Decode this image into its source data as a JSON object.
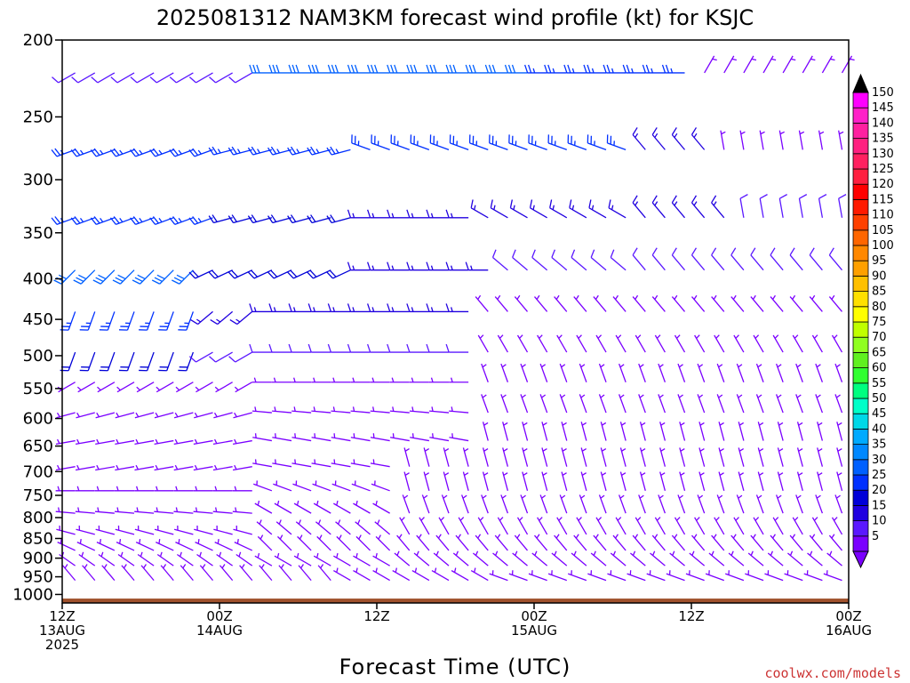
{
  "chart_data": {
    "type": "wind-barb profile",
    "title": "2025081312 NAM3KM forecast wind profile (kt) for KSJC",
    "xlabel": "Forecast Time (UTC)",
    "credit": "coolwx.com/models",
    "y_axis": {
      "scale": "pressure (log)",
      "range": [
        1025,
        200
      ],
      "ticks": [
        "200",
        "250",
        "300",
        "350",
        "400",
        "450",
        "500",
        "550",
        "600",
        "650",
        "700",
        "750",
        "800",
        "850",
        "900",
        "950",
        "1000"
      ]
    },
    "x_axis": {
      "range_hours": [
        0,
        60
      ],
      "ticks": [
        {
          "hour": 0,
          "lines": [
            "12Z",
            "13AUG",
            "2025"
          ]
        },
        {
          "hour": 12,
          "lines": [
            "00Z",
            "14AUG"
          ]
        },
        {
          "hour": 24,
          "lines": [
            "12Z"
          ]
        },
        {
          "hour": 36,
          "lines": [
            "00Z",
            "15AUG"
          ]
        },
        {
          "hour": 48,
          "lines": [
            "12Z"
          ]
        },
        {
          "hour": 60,
          "lines": [
            "00Z",
            "16AUG"
          ]
        }
      ]
    },
    "colorbar": {
      "levels": [
        "5",
        "10",
        "15",
        "20",
        "25",
        "30",
        "35",
        "40",
        "45",
        "50",
        "55",
        "60",
        "65",
        "70",
        "75",
        "80",
        "85",
        "90",
        "95",
        "100",
        "105",
        "110",
        "115",
        "120",
        "125",
        "130",
        "135",
        "140",
        "145",
        "150"
      ],
      "colors": [
        "#7a00ff",
        "#5a18ff",
        "#2000e0",
        "#0000d8",
        "#0030ff",
        "#0060ff",
        "#0088ff",
        "#00aaff",
        "#00d8e8",
        "#00ffc8",
        "#00ff80",
        "#30ff30",
        "#60f020",
        "#90ff20",
        "#c0ff00",
        "#ffff00",
        "#ffe000",
        "#ffc000",
        "#ffa000",
        "#ff8800",
        "#ff6600",
        "#ff4000",
        "#ff1a00",
        "#ff0000",
        "#ff2040",
        "#ff2060",
        "#ff2080",
        "#ff20a0",
        "#ff20c8",
        "#ff00ff"
      ]
    },
    "ground_pressure": 1012,
    "levels_hpa": [
      220,
      275,
      335,
      390,
      440,
      495,
      540,
      590,
      640,
      690,
      740,
      790,
      840,
      880,
      920,
      960
    ],
    "time_step_hours": 1.5,
    "note": "each row lists [speed_kt, direction_deg] pairs (direction is where wind blows FROM) at each 1.5 h step",
    "rows": [
      {
        "p": 220,
        "seg": [
          {
            "n": 10,
            "spd": 12,
            "dir": 240
          },
          {
            "n": 14,
            "spd": 30,
            "dir": 270
          },
          {
            "n": 8,
            "spd": 25,
            "dir": 270
          },
          {
            "n": 9,
            "spd": 8,
            "dir": 30
          }
        ]
      },
      {
        "p": 275,
        "seg": [
          {
            "n": 8,
            "spd": 28,
            "dir": 250
          },
          {
            "n": 7,
            "spd": 25,
            "dir": 255
          },
          {
            "n": 14,
            "spd": 28,
            "dir": 290
          },
          {
            "n": 4,
            "spd": 15,
            "dir": 320
          },
          {
            "n": 8,
            "spd": 8,
            "dir": 350
          }
        ]
      },
      {
        "p": 335,
        "seg": [
          {
            "n": 8,
            "spd": 28,
            "dir": 250
          },
          {
            "n": 7,
            "spd": 22,
            "dir": 255
          },
          {
            "n": 6,
            "spd": 18,
            "dir": 270
          },
          {
            "n": 8,
            "spd": 15,
            "dir": 300
          },
          {
            "n": 5,
            "spd": 15,
            "dir": 320
          },
          {
            "n": 7,
            "spd": 10,
            "dir": 350
          }
        ]
      },
      {
        "p": 390,
        "seg": [
          {
            "n": 7,
            "spd": 30,
            "dir": 225
          },
          {
            "n": 8,
            "spd": 20,
            "dir": 245
          },
          {
            "n": 7,
            "spd": 15,
            "dir": 270
          },
          {
            "n": 7,
            "spd": 10,
            "dir": 310
          },
          {
            "n": 12,
            "spd": 10,
            "dir": 320
          }
        ]
      },
      {
        "p": 440,
        "seg": [
          {
            "n": 7,
            "spd": 25,
            "dir": 200
          },
          {
            "n": 3,
            "spd": 15,
            "dir": 230
          },
          {
            "n": 11,
            "spd": 15,
            "dir": 270
          },
          {
            "n": 20,
            "spd": 8,
            "dir": 320
          }
        ]
      },
      {
        "p": 495,
        "seg": [
          {
            "n": 7,
            "spd": 20,
            "dir": 200
          },
          {
            "n": 3,
            "spd": 10,
            "dir": 240
          },
          {
            "n": 11,
            "spd": 13,
            "dir": 270
          },
          {
            "n": 20,
            "spd": 6,
            "dir": 330
          }
        ]
      },
      {
        "p": 540,
        "seg": [
          {
            "n": 10,
            "spd": 8,
            "dir": 240
          },
          {
            "n": 11,
            "spd": 8,
            "dir": 270
          },
          {
            "n": 20,
            "spd": 6,
            "dir": 340
          }
        ]
      },
      {
        "p": 590,
        "seg": [
          {
            "n": 10,
            "spd": 8,
            "dir": 255
          },
          {
            "n": 11,
            "spd": 8,
            "dir": 275
          },
          {
            "n": 20,
            "spd": 6,
            "dir": 340
          }
        ]
      },
      {
        "p": 640,
        "seg": [
          {
            "n": 10,
            "spd": 8,
            "dir": 260
          },
          {
            "n": 11,
            "spd": 7,
            "dir": 280
          },
          {
            "n": 20,
            "spd": 6,
            "dir": 345
          }
        ]
      },
      {
        "p": 690,
        "seg": [
          {
            "n": 10,
            "spd": 7,
            "dir": 260
          },
          {
            "n": 7,
            "spd": 7,
            "dir": 280
          },
          {
            "n": 24,
            "spd": 6,
            "dir": 345
          }
        ]
      },
      {
        "p": 740,
        "seg": [
          {
            "n": 10,
            "spd": 6,
            "dir": 270
          },
          {
            "n": 7,
            "spd": 6,
            "dir": 290
          },
          {
            "n": 24,
            "spd": 6,
            "dir": 345
          }
        ]
      },
      {
        "p": 790,
        "seg": [
          {
            "n": 10,
            "spd": 6,
            "dir": 275
          },
          {
            "n": 7,
            "spd": 6,
            "dir": 300
          },
          {
            "n": 24,
            "spd": 6,
            "dir": 340
          }
        ]
      },
      {
        "p": 840,
        "seg": [
          {
            "n": 10,
            "spd": 6,
            "dir": 285
          },
          {
            "n": 7,
            "spd": 6,
            "dir": 310
          },
          {
            "n": 24,
            "spd": 5,
            "dir": 330
          }
        ]
      },
      {
        "p": 880,
        "seg": [
          {
            "n": 10,
            "spd": 6,
            "dir": 295
          },
          {
            "n": 7,
            "spd": 6,
            "dir": 315
          },
          {
            "n": 24,
            "spd": 5,
            "dir": 320
          }
        ]
      },
      {
        "p": 920,
        "seg": [
          {
            "n": 10,
            "spd": 5,
            "dir": 305
          },
          {
            "n": 7,
            "spd": 5,
            "dir": 300
          },
          {
            "n": 24,
            "spd": 5,
            "dir": 310
          }
        ]
      },
      {
        "p": 960,
        "seg": [
          {
            "n": 14,
            "spd": 5,
            "dir": 320
          },
          {
            "n": 8,
            "spd": 5,
            "dir": 300
          },
          {
            "n": 19,
            "spd": 5,
            "dir": 290
          }
        ]
      }
    ]
  }
}
